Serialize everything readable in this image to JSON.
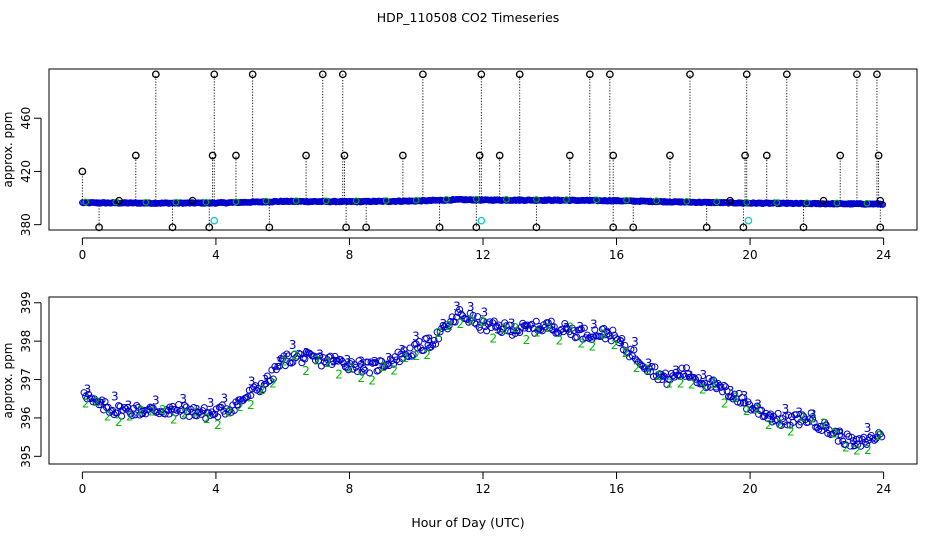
{
  "figure": {
    "title": "HDP_110508  CO2 Timeseries",
    "xlabel": "Hour of Day (UTC)"
  },
  "chart_data": [
    {
      "type": "scatter",
      "title": "HDP_110508  CO2 Timeseries",
      "xlabel": "",
      "ylabel": "approx. ppm",
      "xlim": [
        -1,
        25
      ],
      "ylim": [
        376,
        497
      ],
      "x_ticks": [
        0,
        4,
        8,
        12,
        16,
        20,
        24
      ],
      "y_ticks": [
        380,
        420,
        460
      ],
      "grid": false,
      "baseline": [
        [
          0,
          396.5
        ],
        [
          2,
          396.2
        ],
        [
          4,
          396.3
        ],
        [
          6,
          397.5
        ],
        [
          8,
          397.3
        ],
        [
          10,
          397.8
        ],
        [
          11.3,
          398.8
        ],
        [
          12,
          398.5
        ],
        [
          14,
          398.4
        ],
        [
          16,
          398.0
        ],
        [
          18,
          397.0
        ],
        [
          20,
          396.2
        ],
        [
          22,
          395.8
        ],
        [
          24,
          395.5
        ]
      ],
      "spikes_high": [
        [
          0.0,
          420
        ],
        [
          1.1,
          398
        ],
        [
          1.6,
          432
        ],
        [
          2.2,
          493
        ],
        [
          3.3,
          398
        ],
        [
          3.9,
          432
        ],
        [
          3.95,
          493
        ],
        [
          4.6,
          432
        ],
        [
          5.1,
          493
        ],
        [
          6.7,
          432
        ],
        [
          7.2,
          493
        ],
        [
          7.8,
          493
        ],
        [
          7.85,
          432
        ],
        [
          9.6,
          432
        ],
        [
          10.2,
          493
        ],
        [
          11.9,
          432
        ],
        [
          11.95,
          493
        ],
        [
          12.5,
          432
        ],
        [
          13.1,
          493
        ],
        [
          14.6,
          432
        ],
        [
          15.2,
          493
        ],
        [
          15.8,
          493
        ],
        [
          15.9,
          432
        ],
        [
          17.6,
          432
        ],
        [
          18.2,
          493
        ],
        [
          19.4,
          398
        ],
        [
          19.85,
          432
        ],
        [
          19.9,
          493
        ],
        [
          20.5,
          432
        ],
        [
          21.1,
          493
        ],
        [
          22.2,
          398
        ],
        [
          22.7,
          432
        ],
        [
          23.2,
          493
        ],
        [
          23.8,
          493
        ],
        [
          23.85,
          432
        ],
        [
          23.9,
          398
        ]
      ],
      "spikes_low": [
        [
          0.5,
          378
        ],
        [
          2.7,
          378
        ],
        [
          3.8,
          378
        ],
        [
          5.6,
          378
        ],
        [
          7.9,
          378
        ],
        [
          8.5,
          378
        ],
        [
          10.7,
          378
        ],
        [
          11.8,
          378
        ],
        [
          13.6,
          378
        ],
        [
          15.9,
          378
        ],
        [
          16.5,
          378
        ],
        [
          18.7,
          378
        ],
        [
          19.8,
          378
        ],
        [
          21.6,
          378
        ],
        [
          23.9,
          378
        ]
      ],
      "cyan_points": [
        [
          3.95,
          383
        ],
        [
          11.95,
          383
        ],
        [
          19.95,
          383
        ]
      ]
    },
    {
      "type": "scatter",
      "title": "",
      "xlabel": "Hour of Day (UTC)",
      "ylabel": "approx. ppm",
      "xlim": [
        -1,
        25
      ],
      "ylim": [
        394.8,
        399.15
      ],
      "x_ticks": [
        0,
        4,
        8,
        12,
        16,
        20,
        24
      ],
      "y_ticks": [
        395,
        396,
        397,
        398,
        399
      ],
      "grid": false,
      "series": [
        {
          "name": "",
          "marker": "circle",
          "color": "#0000cc"
        },
        {
          "name": "",
          "marker": "2",
          "color": "#00bb00"
        },
        {
          "name": "",
          "marker": "3",
          "color": "#0000cc"
        }
      ],
      "profile": [
        [
          0,
          396.8
        ],
        [
          0.3,
          396.4
        ],
        [
          1,
          396.2
        ],
        [
          2,
          396.2
        ],
        [
          3,
          396.2
        ],
        [
          3.9,
          396.1
        ],
        [
          4.5,
          396.3
        ],
        [
          5,
          396.6
        ],
        [
          5.6,
          397.0
        ],
        [
          6,
          397.5
        ],
        [
          6.5,
          397.6
        ],
        [
          7,
          397.5
        ],
        [
          7.5,
          397.5
        ],
        [
          8,
          397.4
        ],
        [
          8.7,
          397.3
        ],
        [
          9.5,
          397.6
        ],
        [
          10.5,
          398.0
        ],
        [
          11.3,
          398.7
        ],
        [
          11.6,
          398.6
        ],
        [
          12,
          398.4
        ],
        [
          13,
          398.3
        ],
        [
          14,
          398.4
        ],
        [
          15,
          398.2
        ],
        [
          15.8,
          398.2
        ],
        [
          16.3,
          397.8
        ],
        [
          17,
          397.3
        ],
        [
          17.5,
          397.0
        ],
        [
          18,
          397.2
        ],
        [
          18.5,
          397.0
        ],
        [
          19.5,
          396.6
        ],
        [
          20,
          396.3
        ],
        [
          21,
          395.9
        ],
        [
          21.8,
          396.0
        ],
        [
          22.5,
          395.6
        ],
        [
          23.2,
          395.3
        ],
        [
          24,
          395.6
        ]
      ]
    }
  ]
}
